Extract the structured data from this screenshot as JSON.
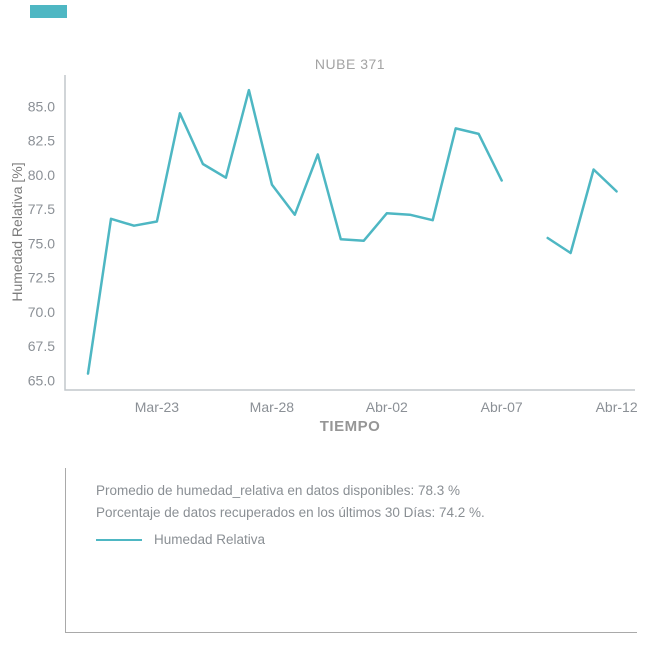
{
  "accent_color": "#4eb7c3",
  "top_accent_bar": {
    "color": "#4eb7c3"
  },
  "chart_data": {
    "type": "line",
    "title": "NUBE 371",
    "xlabel": "TIEMPO",
    "ylabel": "Humedad Relativa [%]",
    "xlim": [
      -1.0,
      23.8
    ],
    "ylim": [
      64.3,
      87.3
    ],
    "grid": false,
    "axis_color": "#c2c7cc",
    "tick_color": "#8b9096",
    "yticks": [
      {
        "v": 65.0,
        "label": "65.0"
      },
      {
        "v": 67.5,
        "label": "67.5"
      },
      {
        "v": 70.0,
        "label": "70.0"
      },
      {
        "v": 72.5,
        "label": "72.5"
      },
      {
        "v": 75.0,
        "label": "75.0"
      },
      {
        "v": 77.5,
        "label": "77.5"
      },
      {
        "v": 80.0,
        "label": "80.0"
      },
      {
        "v": 82.5,
        "label": "82.5"
      },
      {
        "v": 85.0,
        "label": "85.0"
      }
    ],
    "xticks": [
      {
        "v": 3,
        "label": "Mar-23"
      },
      {
        "v": 8,
        "label": "Mar-28"
      },
      {
        "v": 13,
        "label": "Abr-02"
      },
      {
        "v": 18,
        "label": "Abr-07"
      },
      {
        "v": 23,
        "label": "Abr-12"
      }
    ],
    "series": [
      {
        "name": "Humedad Relativa",
        "color": "#4eb7c3",
        "stroke_width": 2.5,
        "segments": [
          [
            [
              0,
              65.5
            ],
            [
              1,
              76.8
            ],
            [
              2,
              76.3
            ],
            [
              3,
              76.6
            ],
            [
              4,
              84.5
            ],
            [
              5,
              80.8
            ],
            [
              6,
              79.8
            ],
            [
              7,
              86.2
            ],
            [
              8,
              79.3
            ],
            [
              9,
              77.1
            ],
            [
              10,
              81.5
            ],
            [
              11,
              75.3
            ],
            [
              12,
              75.2
            ],
            [
              13,
              77.2
            ],
            [
              14,
              77.1
            ],
            [
              15,
              76.7
            ],
            [
              16,
              83.4
            ],
            [
              17,
              83.0
            ],
            [
              18,
              79.6
            ]
          ],
          [
            [
              20,
              75.4
            ],
            [
              21,
              74.3
            ],
            [
              22,
              80.4
            ],
            [
              23,
              78.8
            ]
          ]
        ]
      }
    ]
  },
  "info_box": {
    "line1": "Promedio de humedad_relativa en datos disponibles: 78.3 %",
    "line2": "Porcentaje de datos recuperados en los últimos 30 Días: 74.2 %.",
    "legend_label": "Humedad Relativa"
  }
}
